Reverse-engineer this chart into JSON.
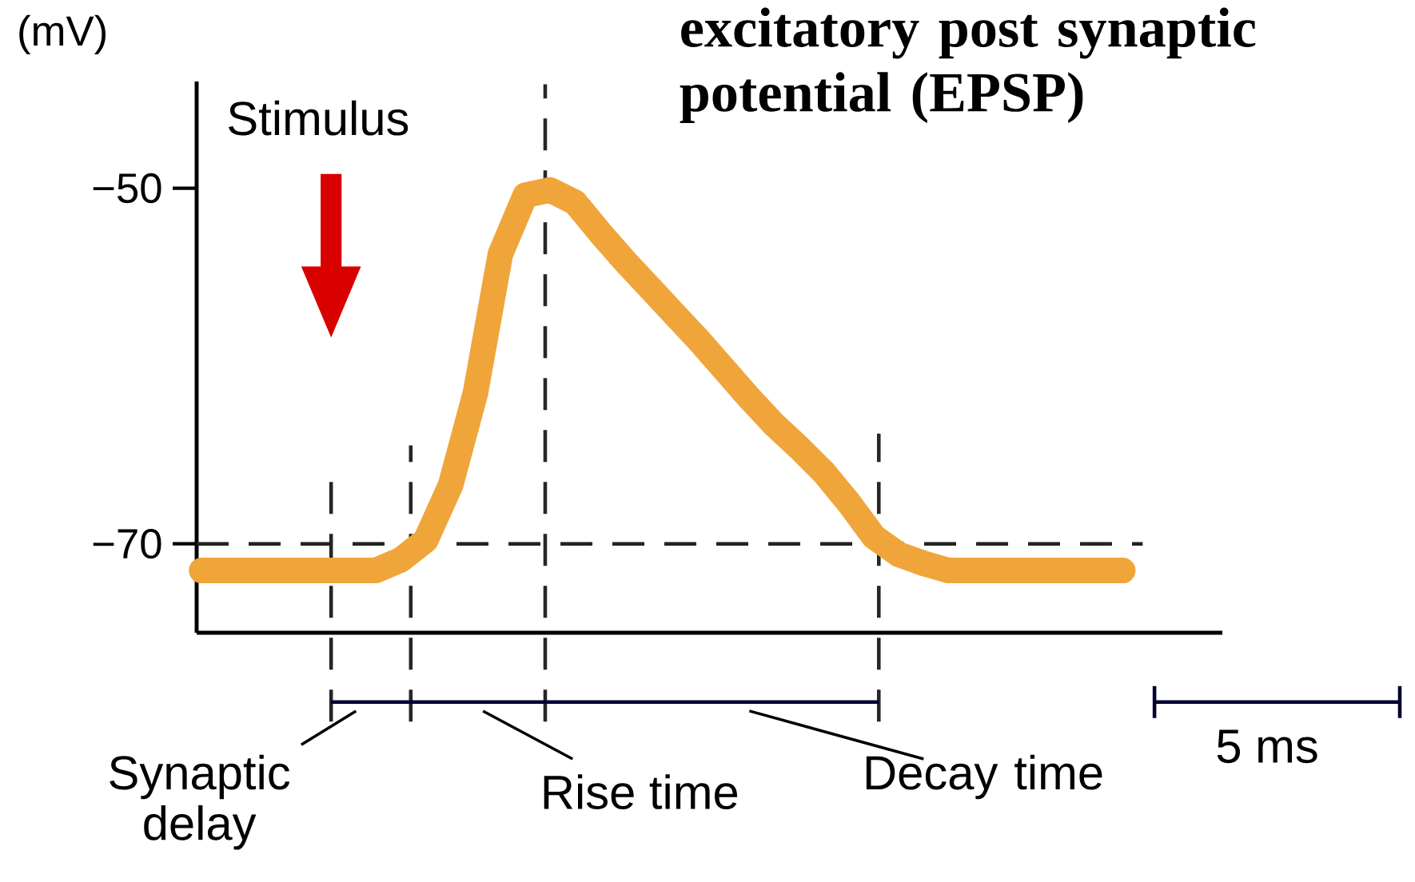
{
  "chart_data": {
    "type": "line",
    "title": "excitatory post synaptic potential (EPSP)",
    "ylabel": "(mV)",
    "categories": [
      null,
      null,
      null,
      null,
      null,
      null,
      null,
      null,
      null,
      null,
      null,
      null,
      null,
      null,
      null,
      null,
      null,
      null,
      null,
      null,
      null,
      null,
      null,
      null,
      null,
      null,
      null,
      null,
      null,
      null,
      null,
      null,
      null,
      null,
      null,
      null,
      null,
      null
    ],
    "series": [
      {
        "color": "#f0a53a",
        "values": [
          -71.5,
          -71.5,
          -71.5,
          -71.5,
          -71.5,
          -71.5,
          -71.5,
          -71.5,
          -70.9,
          -69.8,
          -66.7,
          -61.5,
          -53.7,
          -50.4,
          -50.1,
          -50.8,
          -52.5,
          -54.1,
          -55.6,
          -57.1,
          -58.6,
          -60.2,
          -61.8,
          -63.3,
          -64.6,
          -66.0,
          -67.7,
          -69.6,
          -70.6,
          -71.1,
          -71.5,
          -71.5,
          -71.5,
          -71.5,
          -71.5,
          -71.5,
          -71.5,
          -71.5
        ]
      }
    ],
    "ylim": [
      -75,
      -44
    ],
    "yticks": [
      {
        "value": -70,
        "label": "−70"
      },
      {
        "value": -50,
        "label": "−50"
      }
    ],
    "tick_labels": "y",
    "marker": "none",
    "line_style": "solid",
    "ref_lines": [
      {
        "axis": "y",
        "value": -70,
        "color": "#222222",
        "line_style": "dashed"
      }
    ],
    "annotations": [
      "Stimulus",
      "Synaptic delay",
      "Rise time",
      "Decay time",
      "5 ms"
    ]
  }
}
